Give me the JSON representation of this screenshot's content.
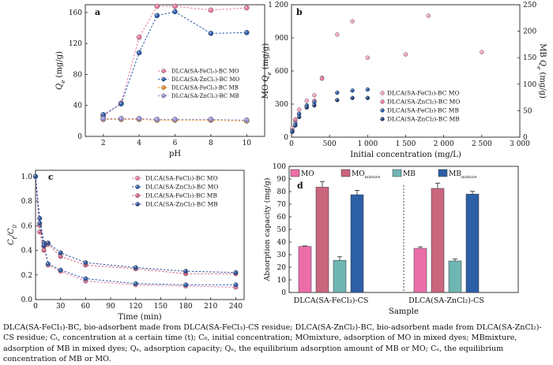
{
  "caption": "DLCA(SA-FeCl₃)-BC, bio-adsorbent made from DLCA(SA-FeCl₃)-CS residue; DLCA(SA-ZnCl₂)-BC, bio-adsorbent made from DLCA(SA-ZnCl₂)-CS residue; Cₜ, concentration at a certain time (t); C₀, initial concentration; MOmixture, adsorption of MO in mixed dyes; MBmixture, adsorption of MB in mixed dyes; Qₑ, adsorption capacity; Qₑ, the equilibrium adsorption amount of MB or MO; Cₑ, the equilibrium concentration of MB or MO.",
  "colors": {
    "pink": "#e8799f",
    "blue": "#2a5caa",
    "orange": "#e98a1c",
    "lavender": "#9a8ed6",
    "mo_mix": "#c9667e",
    "mb": "#6fb6b3",
    "mb_mix": "#2d5fa6"
  },
  "chart_data": [
    {
      "panel": "a",
      "type": "line",
      "xlabel": "pH",
      "ylabel": "Q_e (mg/g)",
      "xlim": [
        1,
        11
      ],
      "ylim": [
        0,
        170
      ],
      "xticks": [
        2,
        4,
        6,
        8,
        10
      ],
      "yticks": [
        0,
        40,
        80,
        120,
        160
      ],
      "legend_position": "center-right",
      "series": [
        {
          "name": "DLCA(SA-FeCl₃)-BC MO",
          "color": "#e8799f",
          "x": [
            2,
            3,
            4,
            5,
            6,
            8,
            10
          ],
          "y": [
            26,
            43,
            128,
            168,
            168,
            163,
            166
          ]
        },
        {
          "name": "DLCA(SA-ZnCl₂)-BC MO",
          "color": "#2a5caa",
          "x": [
            2,
            3,
            4,
            5,
            6,
            8,
            10
          ],
          "y": [
            28,
            42,
            108,
            156,
            161,
            133,
            134
          ]
        },
        {
          "name": "DLCA(SA-FeCl₃)-BC MB",
          "color": "#e98a1c",
          "x": [
            2,
            3,
            4,
            5,
            6,
            8,
            10
          ],
          "y": [
            22,
            22,
            22,
            21,
            21,
            21,
            20
          ]
        },
        {
          "name": "DLCA(SA-ZnCl₂)-BC MB",
          "color": "#9a8ed6",
          "x": [
            2,
            3,
            4,
            5,
            6,
            8,
            10
          ],
          "y": [
            23,
            23,
            23,
            22,
            22,
            22,
            21
          ]
        }
      ]
    },
    {
      "panel": "b",
      "type": "scatter",
      "xlabel": "Initial concentration (mg/L)",
      "ylabel_left": "MO Q_e (mg/g)",
      "ylabel_right": "MB Q_e (mg/g)",
      "xlim": [
        0,
        3000
      ],
      "ylim_left": [
        0,
        1200
      ],
      "ylim_right": [
        0,
        250
      ],
      "xticks": [
        0,
        500,
        1000,
        1500,
        2000,
        2500,
        3000
      ],
      "xtick_labels": [
        "0",
        "500",
        "1 000",
        "1 500",
        "2 000",
        "2 500",
        "3 000"
      ],
      "yticks_left": [
        0,
        300,
        600,
        900,
        1200
      ],
      "ytick_labels_left": [
        "0",
        "300",
        "600",
        "900",
        "1 200"
      ],
      "yticks_right": [
        0,
        50,
        100,
        150,
        200,
        250
      ],
      "legend_position": "center-right",
      "series": [
        {
          "name": "DLCA(SA-FeCl₃)-BC MO",
          "color": "#f2a3c4",
          "axis": "left",
          "x": [
            10,
            50,
            100,
            200,
            300,
            400,
            600,
            800,
            1000,
            1500,
            1800,
            2500
          ],
          "y": [
            80,
            150,
            250,
            330,
            380,
            540,
            930,
            1050,
            720,
            750,
            1100,
            770
          ]
        },
        {
          "name": "DLCA(SA-ZnCl₂)-BC MO",
          "color": "#e8799f",
          "axis": "left",
          "x": [
            10,
            50,
            100,
            200,
            300,
            400
          ],
          "y": [
            60,
            160,
            210,
            280,
            330,
            530
          ]
        },
        {
          "name": "DLCA(SA-FeCl₃)-BC MB",
          "color": "#2a5caa",
          "axis": "right",
          "x": [
            10,
            50,
            100,
            200,
            300,
            600,
            800,
            1000
          ],
          "y": [
            12,
            26,
            44,
            60,
            66,
            84,
            88,
            90
          ]
        },
        {
          "name": "DLCA(SA-ZnCl₂)-BC MB",
          "color": "#1e3f7a",
          "axis": "right",
          "x": [
            10,
            50,
            100,
            200,
            300,
            600,
            800,
            1000
          ],
          "y": [
            10,
            22,
            38,
            56,
            60,
            70,
            74,
            74
          ]
        }
      ]
    },
    {
      "panel": "c",
      "type": "line",
      "xlabel": "Time (min)",
      "ylabel": "C_t/C_0",
      "xlim": [
        0,
        250
      ],
      "ylim": [
        0,
        1.05
      ],
      "xticks": [
        0,
        30,
        60,
        90,
        120,
        150,
        180,
        210,
        240
      ],
      "yticks": [
        0,
        0.2,
        0.4,
        0.6,
        0.8,
        1.0
      ],
      "legend_position": "top-right",
      "series": [
        {
          "name": "DLCA(SA-FeCl₃)-BC MO",
          "color": "#e8799f",
          "x": [
            0,
            5,
            10,
            15,
            30,
            60,
            120,
            180,
            240
          ],
          "y": [
            1.0,
            0.6,
            0.43,
            0.28,
            0.23,
            0.15,
            0.12,
            0.11,
            0.1
          ]
        },
        {
          "name": "DLCA(SA-ZnCl₂)-BC MO",
          "color": "#2a5caa",
          "x": [
            0,
            5,
            10,
            15,
            30,
            60,
            120,
            180,
            240
          ],
          "y": [
            1.0,
            0.66,
            0.46,
            0.29,
            0.24,
            0.17,
            0.13,
            0.12,
            0.12
          ]
        },
        {
          "name": "DLCA(SA-FeCl₃)-BC MB",
          "color": "#d4607f",
          "x": [
            0,
            5,
            10,
            15,
            30,
            60,
            120,
            180,
            240
          ],
          "y": [
            1.0,
            0.55,
            0.4,
            0.45,
            0.35,
            0.28,
            0.25,
            0.21,
            0.21
          ]
        },
        {
          "name": "DLCA(SA-ZnCl₂)-BC MB",
          "color": "#2c4f9a",
          "x": [
            0,
            5,
            10,
            15,
            30,
            60,
            120,
            180,
            240
          ],
          "y": [
            1.0,
            0.62,
            0.44,
            0.46,
            0.38,
            0.3,
            0.26,
            0.23,
            0.22
          ]
        }
      ]
    },
    {
      "panel": "d",
      "type": "bar",
      "xlabel": "Sample",
      "ylabel": "Absorption capacity (mg/g)",
      "ylim": [
        0,
        100
      ],
      "yticks": [
        0,
        10,
        20,
        30,
        40,
        50,
        60,
        70,
        80,
        90,
        100
      ],
      "categories": [
        "DLCA(SA-FeCl₃)-CS",
        "DLCA(SA-ZnCl₂)-CS"
      ],
      "legend_position": "top",
      "series": [
        {
          "name": "MO",
          "color": "#ec6ea9",
          "values": [
            36.5,
            35
          ],
          "errors": [
            0.4,
            1.2
          ]
        },
        {
          "name": "MOmixture",
          "color": "#c9667e",
          "values": [
            83.5,
            82.5
          ],
          "errors": [
            4.5,
            4.2
          ]
        },
        {
          "name": "MB",
          "color": "#6fb6b3",
          "values": [
            25.5,
            25
          ],
          "errors": [
            2.8,
            1.5
          ]
        },
        {
          "name": "MBmixture",
          "color": "#2d5fa6",
          "values": [
            77.5,
            78
          ],
          "errors": [
            3.5,
            2.2
          ]
        }
      ]
    }
  ]
}
